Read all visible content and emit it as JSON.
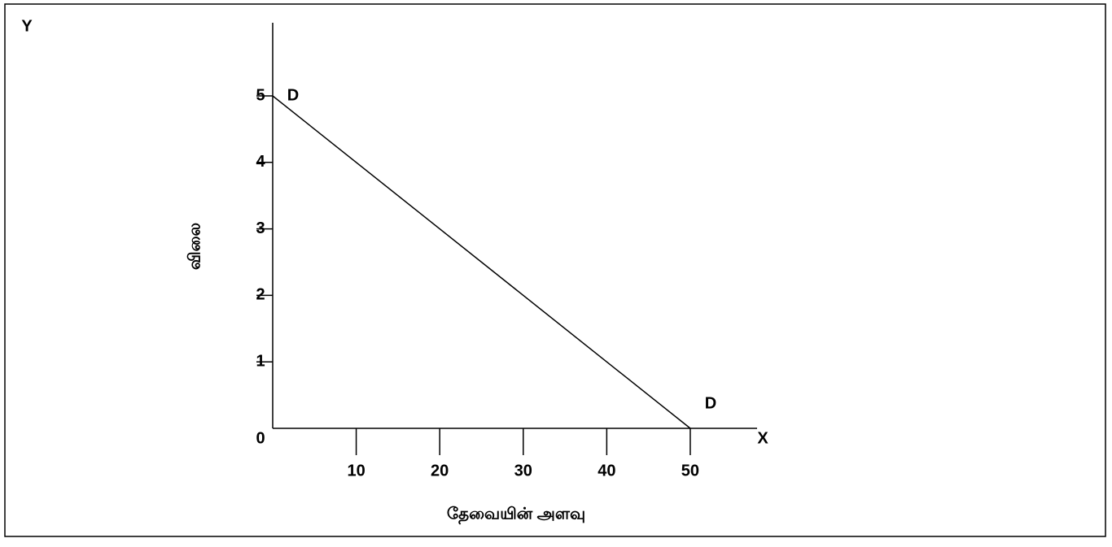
{
  "chart_data": {
    "type": "line",
    "x_label": "தேவையின் அளவு",
    "y_label": "விலை",
    "x_axis_name": "X",
    "y_axis_name": "Y",
    "x": [
      0,
      50
    ],
    "series": [
      {
        "name": "D",
        "color": "#000000",
        "values": [
          5,
          0
        ]
      }
    ],
    "annotations": [
      {
        "text": "D",
        "point": 0
      },
      {
        "text": "D",
        "point": 1
      }
    ],
    "xlim": [
      0,
      58
    ],
    "ylim": [
      0,
      6.1
    ],
    "xticks": [
      10,
      20,
      30,
      40,
      50
    ],
    "yticks": [
      0,
      1,
      2,
      3,
      4,
      5
    ],
    "grid": false
  }
}
